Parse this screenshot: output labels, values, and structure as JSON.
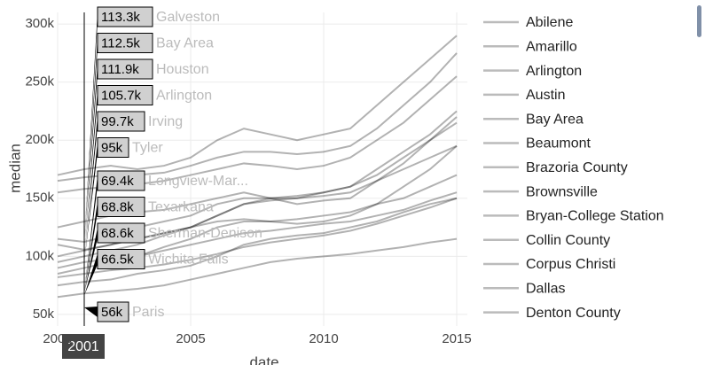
{
  "chart_data": {
    "type": "line",
    "x_label": "date",
    "y_label": "median",
    "x": [
      2000,
      2001,
      2002,
      2003,
      2004,
      2005,
      2006,
      2007,
      2008,
      2009,
      2010,
      2011,
      2012,
      2013,
      2014,
      2015
    ],
    "xlim": [
      2000,
      2015.4
    ],
    "xticks": [
      2000,
      2005,
      2010,
      2015
    ],
    "ylim": [
      40000,
      310000
    ],
    "yticks": [
      {
        "value": 50000,
        "label": "50k"
      },
      {
        "value": 100000,
        "label": "100k"
      },
      {
        "value": 150000,
        "label": "150k"
      },
      {
        "value": 200000,
        "label": "200k"
      },
      {
        "value": 250000,
        "label": "250k"
      },
      {
        "value": 300000,
        "label": "300k"
      }
    ],
    "grid": true,
    "legend_position": "right",
    "legend_color": "#bbbbbb",
    "series": [
      {
        "name": "Abilene",
        "color": "rgba(0,0,0,0.3)",
        "values": [
          82000,
          85000,
          88000,
          90000,
          93000,
          97000,
          102000,
          108000,
          112000,
          115000,
          118000,
          122000,
          128000,
          135000,
          142000,
          150000
        ]
      },
      {
        "name": "Amarillo",
        "color": "rgba(0,0,0,0.3)",
        "values": [
          90000,
          95000,
          98000,
          100000,
          105000,
          110000,
          115000,
          120000,
          122000,
          125000,
          128000,
          130000,
          135000,
          140000,
          148000,
          155000
        ]
      },
      {
        "name": "Arlington",
        "color": "rgba(0,0,0,0.3)",
        "values": [
          110000,
          105700,
          110000,
          115000,
          120000,
          125000,
          130000,
          132000,
          130000,
          128000,
          130000,
          135000,
          145000,
          160000,
          175000,
          195000
        ]
      },
      {
        "name": "Austin",
        "color": "rgba(0,0,0,0.3)",
        "values": [
          170000,
          175000,
          178000,
          175000,
          178000,
          185000,
          200000,
          210000,
          205000,
          200000,
          205000,
          210000,
          230000,
          250000,
          270000,
          290000
        ]
      },
      {
        "name": "Bay Area",
        "color": "rgba(0,0,0,0.3)",
        "values": [
          115000,
          112500,
          118000,
          125000,
          130000,
          135000,
          145000,
          150000,
          150000,
          152000,
          155000,
          160000,
          175000,
          190000,
          205000,
          225000
        ]
      },
      {
        "name": "Beaumont",
        "color": "rgba(0,0,0,0.3)",
        "values": [
          75000,
          78000,
          80000,
          85000,
          88000,
          92000,
          100000,
          110000,
          115000,
          118000,
          120000,
          125000,
          130000,
          138000,
          145000,
          150000
        ]
      },
      {
        "name": "Brazoria County",
        "color": "rgba(0,0,0,0.3)",
        "values": [
          100000,
          105000,
          110000,
          115000,
          120000,
          125000,
          135000,
          145000,
          150000,
          150000,
          155000,
          160000,
          170000,
          185000,
          200000,
          215000
        ]
      },
      {
        "name": "Brownsville",
        "color": "rgba(0,0,0,0.3)",
        "values": [
          65000,
          68000,
          70000,
          72000,
          75000,
          80000,
          85000,
          90000,
          95000,
          98000,
          100000,
          102000,
          105000,
          108000,
          112000,
          115000
        ]
      },
      {
        "name": "Bryan-College Station",
        "color": "rgba(0,0,0,0.3)",
        "values": [
          95000,
          100000,
          105000,
          110000,
          118000,
          125000,
          135000,
          145000,
          148000,
          150000,
          152000,
          155000,
          165000,
          175000,
          185000,
          195000
        ]
      },
      {
        "name": "Collin County",
        "color": "rgba(0,0,0,0.3)",
        "values": [
          165000,
          168000,
          170000,
          170000,
          172000,
          178000,
          185000,
          190000,
          190000,
          188000,
          190000,
          195000,
          210000,
          230000,
          250000,
          275000
        ]
      },
      {
        "name": "Corpus Christi",
        "color": "rgba(0,0,0,0.3)",
        "values": [
          85000,
          90000,
          95000,
          100000,
          108000,
          115000,
          125000,
          130000,
          130000,
          132000,
          135000,
          138000,
          145000,
          150000,
          160000,
          170000
        ]
      },
      {
        "name": "Dallas",
        "color": "rgba(0,0,0,0.3)",
        "values": [
          125000,
          130000,
          135000,
          138000,
          140000,
          145000,
          150000,
          155000,
          150000,
          145000,
          148000,
          150000,
          165000,
          180000,
          200000,
          220000
        ]
      },
      {
        "name": "Denton County",
        "color": "rgba(0,0,0,0.3)",
        "values": [
          155000,
          158000,
          160000,
          162000,
          165000,
          170000,
          175000,
          180000,
          178000,
          175000,
          178000,
          185000,
          200000,
          215000,
          235000,
          255000
        ]
      }
    ],
    "hover_x": {
      "value": 2001,
      "label": "2001"
    },
    "hover": [
      {
        "name": "Galveston",
        "value": 113300,
        "value_label": "113.3k"
      },
      {
        "name": "Bay Area",
        "value": 112500,
        "value_label": "112.5k"
      },
      {
        "name": "Houston",
        "value": 111900,
        "value_label": "111.9k"
      },
      {
        "name": "Arlington",
        "value": 105700,
        "value_label": "105.7k"
      },
      {
        "name": "Irving",
        "value": 99700,
        "value_label": "99.7k"
      },
      {
        "name": "Tyler",
        "value": 95000,
        "value_label": "95k"
      },
      {
        "name": "Longview-Mar...",
        "value": 69400,
        "value_label": "69.4k"
      },
      {
        "name": "Texarkana",
        "value": 68800,
        "value_label": "68.8k"
      },
      {
        "name": "Sherman-Denison",
        "value": 68600,
        "value_label": "68.6k"
      },
      {
        "name": "Wichita Falls",
        "value": 66500,
        "value_label": "66.5k"
      },
      {
        "name": "Paris",
        "value": 56000,
        "value_label": "56k"
      }
    ]
  }
}
